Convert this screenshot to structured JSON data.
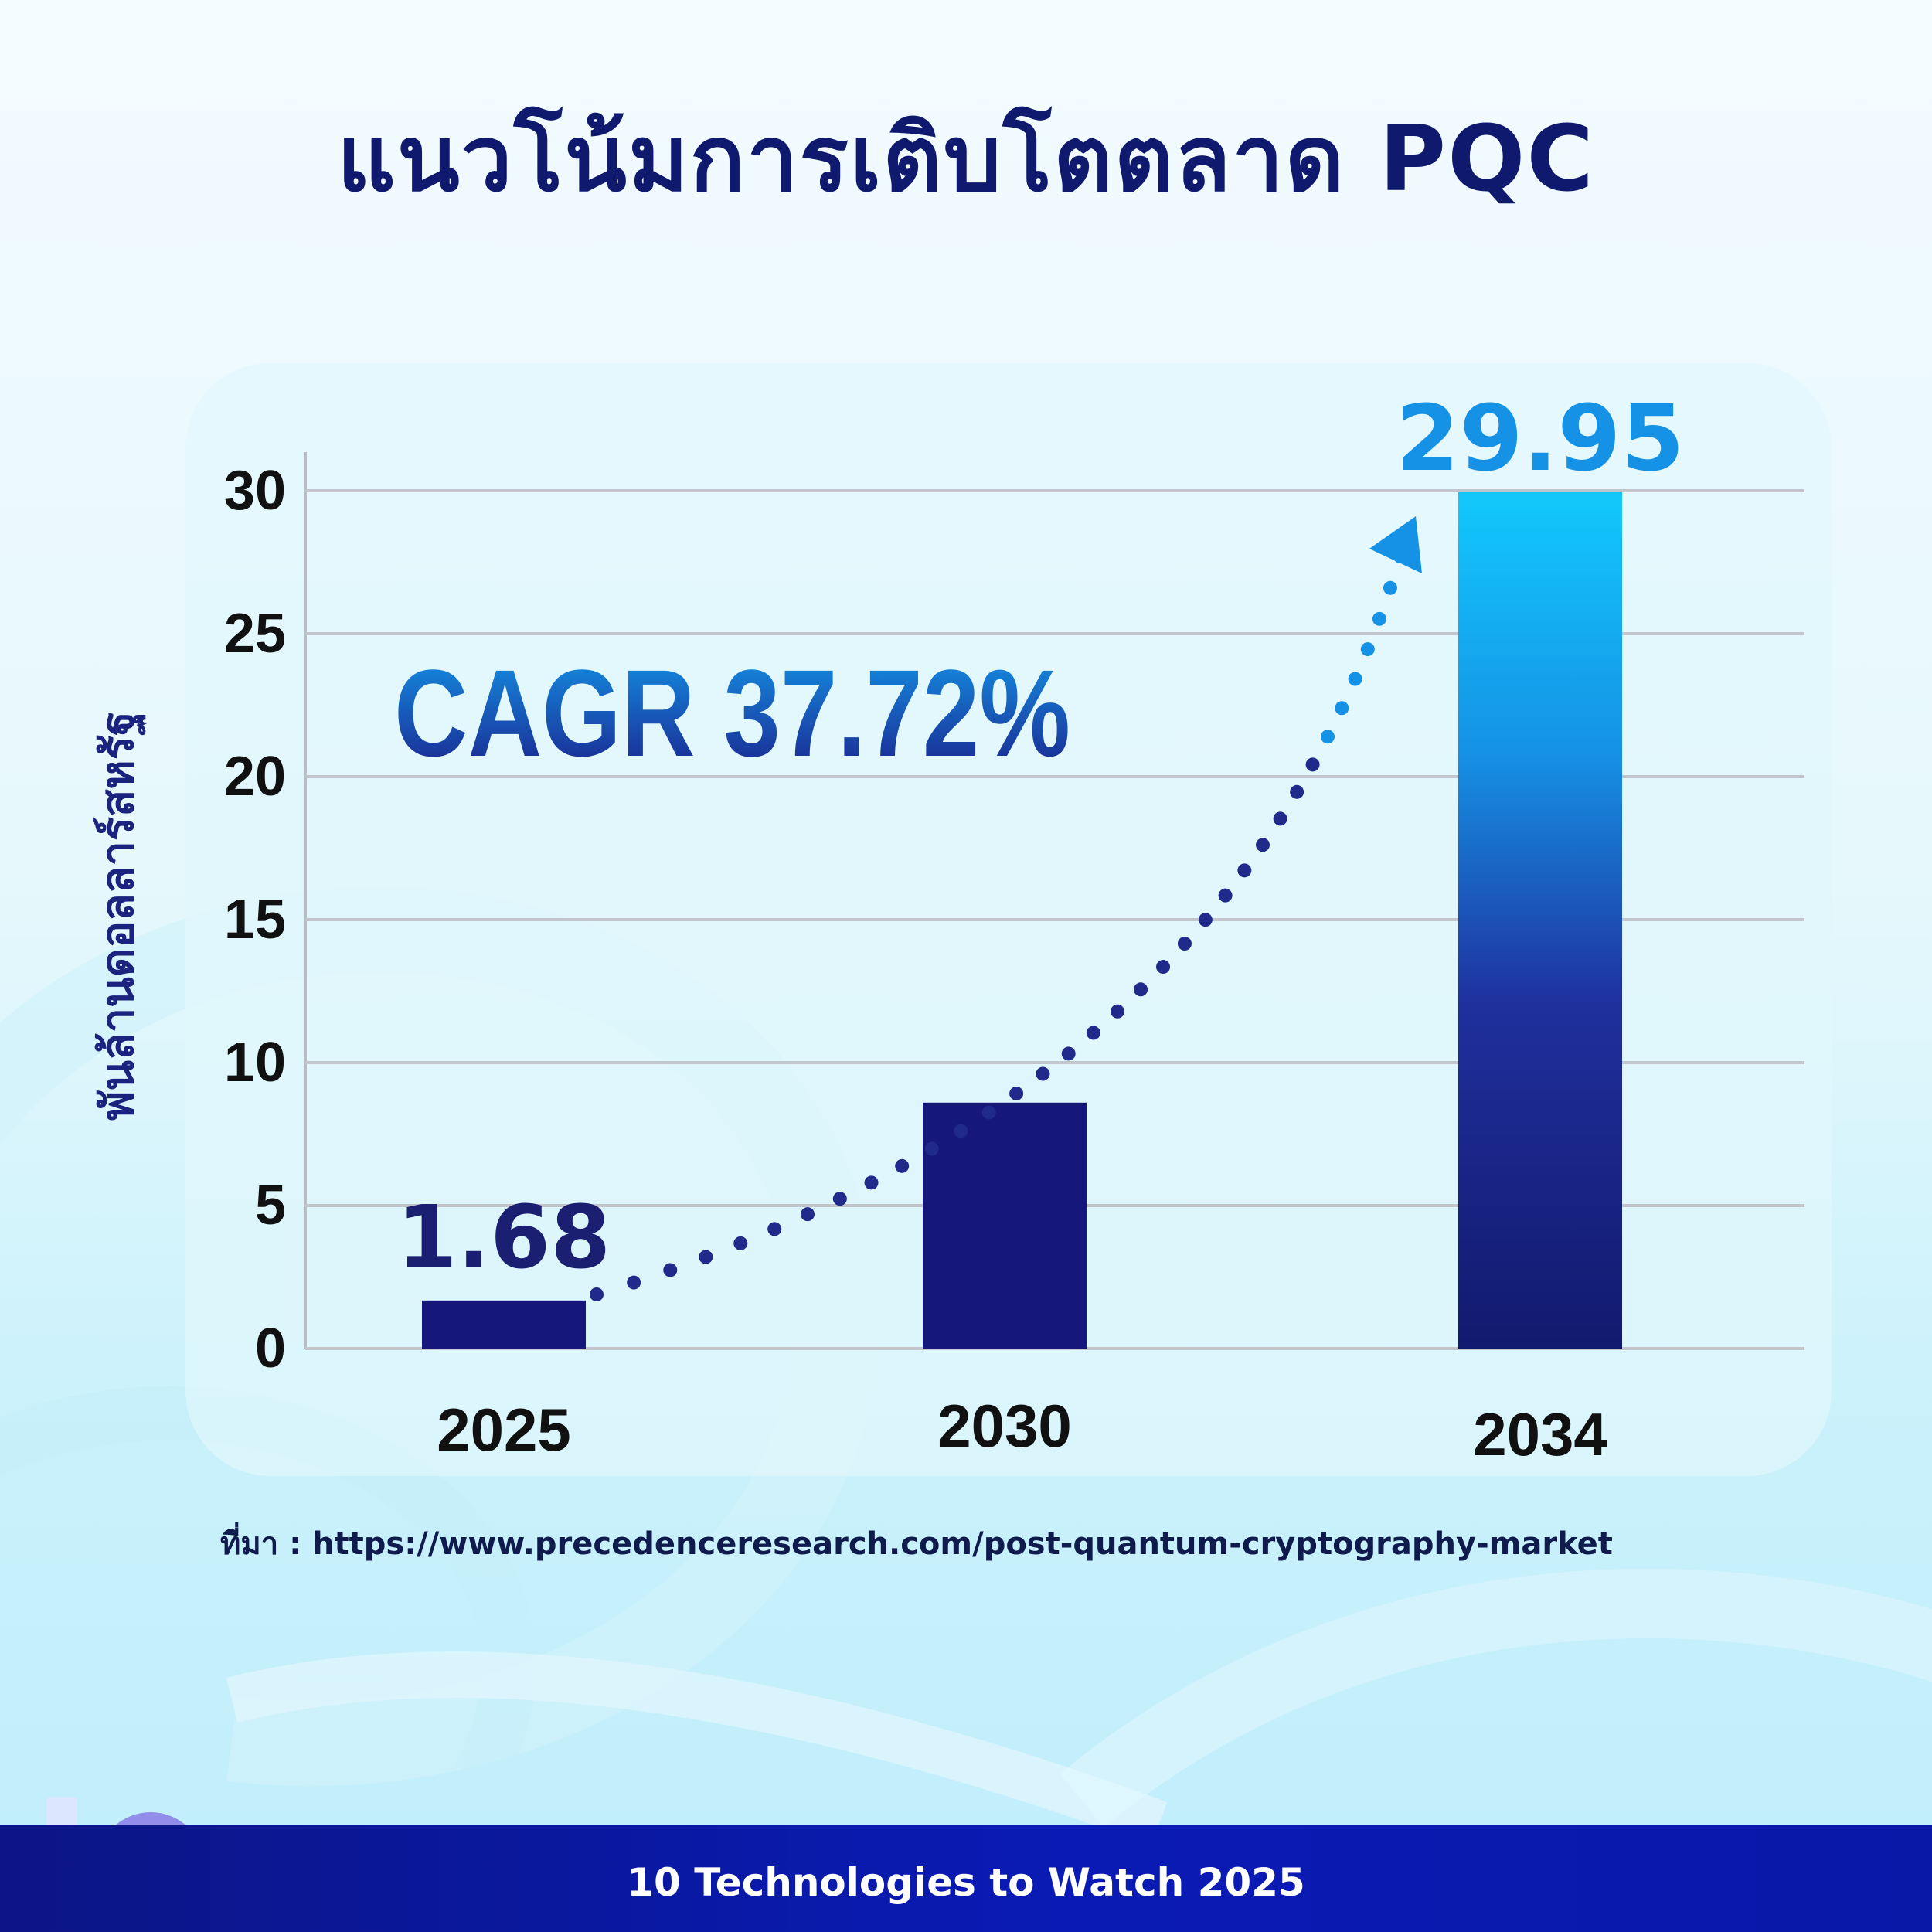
{
  "title": "แนวโน้มการเติบโตตลาด PQC",
  "source": "ที่มา : https://www.precedenceresearch.com/post-quantum-cryptography-market",
  "footer": {
    "text": "10 Technologies to Watch 2025",
    "logo_icon": "ten-orbit-logo-icon"
  },
  "colors": {
    "title": "#0f1a6e",
    "bar_dark": "#16177a",
    "bar_light": "#12c8fb",
    "accent_blue": "#1592e6",
    "footer": "#0a18a8"
  },
  "chart_data": {
    "type": "bar",
    "categories": [
      "2025",
      "2030",
      "2034"
    ],
    "values": [
      1.68,
      8.6,
      29.95
    ],
    "data_labels": [
      "1.68",
      "",
      "29.95"
    ],
    "ylabel": "พันล้านดอลลาร์สหรัฐ",
    "ylim": [
      0,
      30
    ],
    "yticks": [
      0,
      5,
      10,
      15,
      20,
      25,
      30
    ],
    "grid": true,
    "annotation": "CAGR 37.72%"
  }
}
